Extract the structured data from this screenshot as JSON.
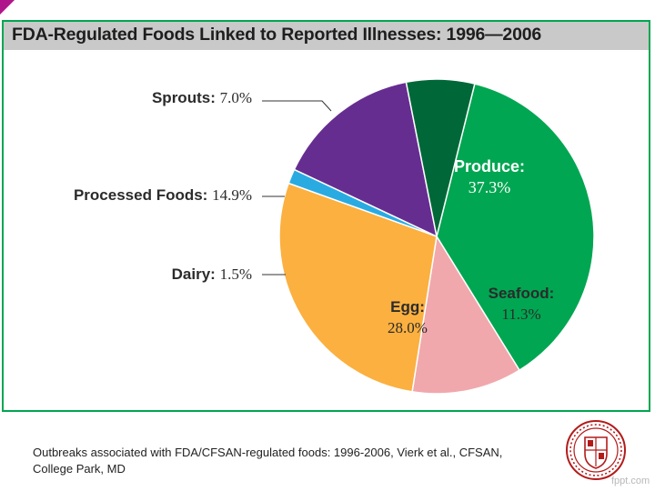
{
  "title": "FDA-Regulated Foods Linked to Reported Illnesses: 1996—2006",
  "chart_data": {
    "type": "pie",
    "title": "FDA-Regulated Foods Linked to Reported Illnesses: 1996—2006",
    "unit": "%",
    "start_angle_deg": 14,
    "direction": "clockwise",
    "slices": [
      {
        "key": "produce",
        "name": "Produce",
        "value": 37.3,
        "label": "Produce:",
        "value_label": "37.3%",
        "color": "#00a651",
        "label_text_color": "#ffffff",
        "label_position": "inside"
      },
      {
        "key": "seafood",
        "name": "Seafood",
        "value": 11.3,
        "label": "Seafood:",
        "value_label": "11.3%",
        "color": "#f0a8ac",
        "label_text_color": "#2b2b2b",
        "label_position": "inside"
      },
      {
        "key": "egg",
        "name": "Egg",
        "value": 28.0,
        "label": "Egg:",
        "value_label": "28.0%",
        "color": "#fbb040",
        "label_text_color": "#2b2b2b",
        "label_position": "inside"
      },
      {
        "key": "dairy",
        "name": "Dairy",
        "value": 1.5,
        "label": "Dairy:",
        "value_label": "1.5%",
        "color": "#29abe2",
        "label_text_color": "#2b2b2b",
        "label_position": "outside-left"
      },
      {
        "key": "processed",
        "name": "Processed Foods",
        "value": 14.9,
        "label": "Processed Foods:",
        "value_label": "14.9%",
        "color": "#662d91",
        "label_text_color": "#2b2b2b",
        "label_position": "outside-left"
      },
      {
        "key": "sprouts",
        "name": "Sprouts",
        "value": 7.0,
        "label": "Sprouts:",
        "value_label": "7.0%",
        "color": "#006838",
        "label_text_color": "#2b2b2b",
        "label_position": "outside-left"
      }
    ]
  },
  "citation": "Outbreaks associated with FDA/CFSAN-regulated foods: 1996-2006, Vierk et al., CFSAN,\nCollege Park, MD",
  "watermark": "fppt.com",
  "colors": {
    "frame_border": "#00a651",
    "title_bar": "#c9c9c9",
    "corner_mark": "#b0168c",
    "seal": "#b31b1b"
  }
}
